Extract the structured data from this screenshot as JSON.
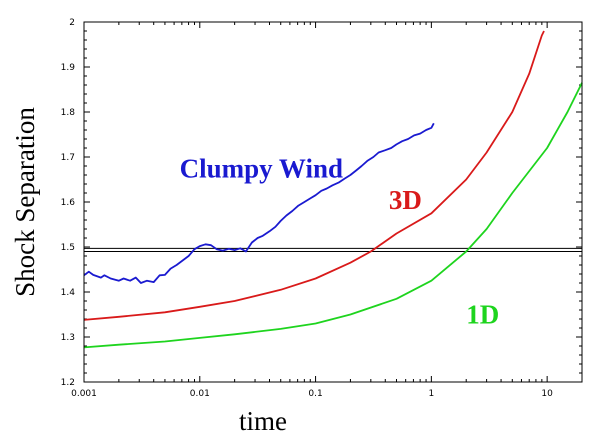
{
  "chart_data": {
    "type": "line",
    "xlabel": "time",
    "ylabel": "Shock Separation",
    "x_scale": "log",
    "xlim": [
      0.001,
      20
    ],
    "ylim": [
      1.2,
      2.0
    ],
    "x_ticks": [
      0.001,
      0.01,
      0.1,
      1,
      10
    ],
    "x_tick_labels": [
      "0.001",
      "0.01",
      "0.1",
      "1",
      "10"
    ],
    "y_ticks": [
      1.2,
      1.3,
      1.4,
      1.5,
      1.6,
      1.7,
      1.8,
      1.9,
      2.0
    ],
    "y_tick_labels": [
      "1.2",
      "1.3",
      "1.4",
      "1.5",
      "1.6",
      "1.7",
      "1.8",
      "1.9",
      "2"
    ],
    "grid": false,
    "legend": "none",
    "reference_lines": [
      {
        "y": 1.497,
        "color": "#000000"
      },
      {
        "y": 1.49,
        "color": "#000000"
      }
    ],
    "annotations": [
      {
        "text": "Clumpy Wind",
        "color": "#1a1ad0",
        "x": 0.0067,
        "y": 1.655
      },
      {
        "text": "3D",
        "color": "#d91a1a",
        "x": 0.43,
        "y": 1.585
      },
      {
        "text": "1D",
        "color": "#1ed41e",
        "x": 2.0,
        "y": 1.33
      }
    ],
    "series": [
      {
        "label": "Clumpy Wind",
        "color": "#1a1ad0",
        "points": [
          [
            0.001,
            1.437
          ],
          [
            0.0011,
            1.445
          ],
          [
            0.0012,
            1.438
          ],
          [
            0.0014,
            1.432
          ],
          [
            0.0015,
            1.437
          ],
          [
            0.0017,
            1.43
          ],
          [
            0.002,
            1.425
          ],
          [
            0.0022,
            1.43
          ],
          [
            0.0025,
            1.425
          ],
          [
            0.0028,
            1.432
          ],
          [
            0.0031,
            1.42
          ],
          [
            0.0035,
            1.425
          ],
          [
            0.004,
            1.422
          ],
          [
            0.0045,
            1.437
          ],
          [
            0.005,
            1.438
          ],
          [
            0.0056,
            1.452
          ],
          [
            0.0063,
            1.46
          ],
          [
            0.0071,
            1.47
          ],
          [
            0.008,
            1.48
          ],
          [
            0.009,
            1.495
          ],
          [
            0.01,
            1.502
          ],
          [
            0.0112,
            1.506
          ],
          [
            0.0125,
            1.504
          ],
          [
            0.014,
            1.495
          ],
          [
            0.0158,
            1.492
          ],
          [
            0.0178,
            1.496
          ],
          [
            0.02,
            1.493
          ],
          [
            0.0224,
            1.497
          ],
          [
            0.025,
            1.49
          ],
          [
            0.0282,
            1.51
          ],
          [
            0.0316,
            1.52
          ],
          [
            0.035,
            1.525
          ],
          [
            0.04,
            1.535
          ],
          [
            0.045,
            1.545
          ],
          [
            0.05,
            1.558
          ],
          [
            0.056,
            1.57
          ],
          [
            0.063,
            1.58
          ],
          [
            0.071,
            1.592
          ],
          [
            0.08,
            1.6
          ],
          [
            0.09,
            1.608
          ],
          [
            0.1,
            1.615
          ],
          [
            0.112,
            1.625
          ],
          [
            0.125,
            1.63
          ],
          [
            0.14,
            1.637
          ],
          [
            0.158,
            1.643
          ],
          [
            0.178,
            1.652
          ],
          [
            0.2,
            1.66
          ],
          [
            0.224,
            1.67
          ],
          [
            0.25,
            1.68
          ],
          [
            0.282,
            1.692
          ],
          [
            0.316,
            1.7
          ],
          [
            0.35,
            1.71
          ],
          [
            0.4,
            1.715
          ],
          [
            0.45,
            1.72
          ],
          [
            0.5,
            1.728
          ],
          [
            0.56,
            1.735
          ],
          [
            0.63,
            1.74
          ],
          [
            0.71,
            1.748
          ],
          [
            0.8,
            1.752
          ],
          [
            0.9,
            1.76
          ],
          [
            1.0,
            1.765
          ],
          [
            1.05,
            1.775
          ]
        ]
      },
      {
        "label": "3D",
        "color": "#d91a1a",
        "points": [
          [
            0.001,
            1.338
          ],
          [
            0.002,
            1.345
          ],
          [
            0.005,
            1.355
          ],
          [
            0.01,
            1.367
          ],
          [
            0.02,
            1.38
          ],
          [
            0.05,
            1.405
          ],
          [
            0.1,
            1.43
          ],
          [
            0.2,
            1.465
          ],
          [
            0.3,
            1.49
          ],
          [
            0.5,
            1.53
          ],
          [
            1.0,
            1.575
          ],
          [
            2.0,
            1.65
          ],
          [
            3.0,
            1.71
          ],
          [
            5.0,
            1.8
          ],
          [
            7.0,
            1.885
          ],
          [
            9.0,
            1.97
          ],
          [
            9.4,
            1.98
          ]
        ]
      },
      {
        "label": "1D",
        "color": "#1ed41e",
        "points": [
          [
            0.001,
            1.277
          ],
          [
            0.002,
            1.283
          ],
          [
            0.005,
            1.29
          ],
          [
            0.01,
            1.298
          ],
          [
            0.02,
            1.306
          ],
          [
            0.05,
            1.318
          ],
          [
            0.1,
            1.33
          ],
          [
            0.2,
            1.35
          ],
          [
            0.5,
            1.385
          ],
          [
            1.0,
            1.425
          ],
          [
            2.0,
            1.49
          ],
          [
            3.0,
            1.54
          ],
          [
            5.0,
            1.62
          ],
          [
            10.0,
            1.72
          ],
          [
            15.0,
            1.8
          ],
          [
            20.0,
            1.865
          ]
        ]
      }
    ]
  }
}
